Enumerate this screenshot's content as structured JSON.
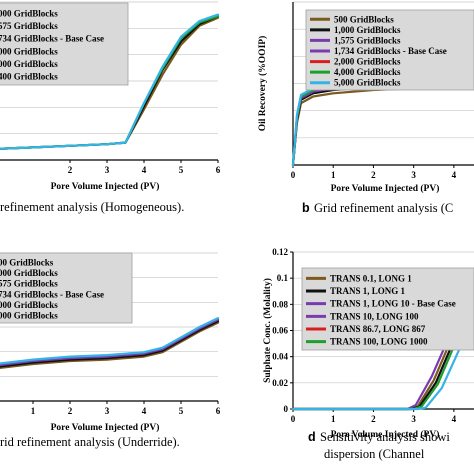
{
  "chart_data": [
    {
      "type": "line",
      "caption_label": "",
      "caption": "refinement analysis (Homogeneous).",
      "xlabel": "Pore Volume Injected (PV)",
      "ylabel": "",
      "xlim": [
        0,
        6
      ],
      "ylim": [
        0,
        1
      ],
      "xticks": [
        "2",
        "3",
        "4",
        "5",
        "6"
      ],
      "yticks": [],
      "legend": [
        "000 GridBlocks",
        "575 GridBlocks",
        "734 GridBlocks - Base Case",
        "000 GridBlocks",
        "000 GridBlocks",
        "400 GridBlocks"
      ],
      "series": [
        {
          "color": "#7a5a1e",
          "x": [
            0,
            1,
            2,
            3,
            3.5,
            4,
            4.5,
            5,
            5.5,
            6
          ],
          "y": [
            0.07,
            0.08,
            0.09,
            0.1,
            0.11,
            0.32,
            0.54,
            0.73,
            0.85,
            0.9
          ]
        },
        {
          "color": "#111111",
          "x": [
            0,
            1,
            2,
            3,
            3.5,
            4,
            4.5,
            5,
            5.5,
            6
          ],
          "y": [
            0.07,
            0.08,
            0.09,
            0.1,
            0.11,
            0.34,
            0.57,
            0.75,
            0.86,
            0.91
          ]
        },
        {
          "color": "#1c9f2c",
          "x": [
            0,
            1,
            2,
            3,
            3.5,
            4,
            4.5,
            5,
            5.5,
            6
          ],
          "y": [
            0.07,
            0.08,
            0.09,
            0.1,
            0.11,
            0.36,
            0.58,
            0.77,
            0.87,
            0.91
          ]
        },
        {
          "color": "#34b4e6",
          "x": [
            0,
            1,
            2,
            3,
            3.5,
            4,
            4.5,
            5,
            5.5,
            6
          ],
          "y": [
            0.07,
            0.08,
            0.09,
            0.1,
            0.11,
            0.36,
            0.59,
            0.78,
            0.88,
            0.92
          ]
        }
      ]
    },
    {
      "type": "line",
      "caption_label": "b",
      "caption": "Grid refinement analysis (C",
      "xlabel": "Pore Volume Injected (PV)",
      "ylabel": "Oil Recovery (%OOIP)",
      "xlim": [
        0,
        4.6
      ],
      "ylim": [
        0,
        1
      ],
      "xticks": [
        "0",
        "1",
        "2",
        "3",
        "4"
      ],
      "yticks": [],
      "legend": [
        "500 GridBlocks",
        "1,000 GridBlocks",
        "1,575 GridBlocks",
        "1,734 GridBlocks - Base Case",
        "2,000 GridBlocks",
        "4,000 GridBlocks",
        "5,000 GridBlocks"
      ],
      "series": [
        {
          "color": "#7a5a1e",
          "x": [
            0,
            0.1,
            0.2,
            0.5,
            1,
            2,
            3,
            3.5,
            4,
            4.6
          ],
          "y": [
            0.0,
            0.26,
            0.38,
            0.42,
            0.44,
            0.46,
            0.47,
            0.48,
            0.53,
            0.62
          ]
        },
        {
          "color": "#111111",
          "x": [
            0,
            0.1,
            0.2,
            0.5,
            1,
            2,
            3,
            3.5,
            4,
            4.6
          ],
          "y": [
            0.0,
            0.28,
            0.4,
            0.44,
            0.46,
            0.48,
            0.49,
            0.5,
            0.55,
            0.64
          ]
        },
        {
          "color": "#7b3bb0",
          "x": [
            0,
            0.1,
            0.2,
            0.5,
            1,
            2,
            3,
            3.5,
            4,
            4.6
          ],
          "y": [
            0.0,
            0.29,
            0.41,
            0.45,
            0.47,
            0.49,
            0.5,
            0.51,
            0.56,
            0.65
          ]
        },
        {
          "color": "#1c9f2c",
          "x": [
            0,
            0.1,
            0.2,
            0.5,
            1,
            2,
            3,
            3.5,
            4,
            4.6
          ],
          "y": [
            0.0,
            0.3,
            0.42,
            0.46,
            0.48,
            0.5,
            0.51,
            0.52,
            0.57,
            0.66
          ]
        },
        {
          "color": "#34b4e6",
          "x": [
            0,
            0.1,
            0.2,
            0.5,
            1,
            2,
            3,
            3.5,
            4,
            4.6
          ],
          "y": [
            0.0,
            0.31,
            0.43,
            0.47,
            0.49,
            0.51,
            0.52,
            0.53,
            0.58,
            0.67
          ]
        }
      ]
    },
    {
      "type": "line",
      "caption_label": "",
      "caption": "rid refinement analysis (Underride).",
      "xlabel": "Pore Volume Injected (PV)",
      "ylabel": "",
      "xlim": [
        0,
        6
      ],
      "ylim": [
        0,
        1
      ],
      "xticks": [
        "1",
        "2",
        "3",
        "4",
        "5",
        "6"
      ],
      "yticks": [],
      "legend": [
        "00 GridBlocks",
        "000 GridBlocks",
        "575 GridBlocks",
        "734 GridBlocks - Base Case",
        "000 GridBlocks",
        "000 GridBlocks"
      ],
      "series": [
        {
          "color": "#7a5a1e",
          "x": [
            0,
            1,
            2,
            3,
            4,
            4.5,
            5,
            5.5,
            6
          ],
          "y": [
            0.22,
            0.25,
            0.27,
            0.28,
            0.3,
            0.33,
            0.4,
            0.47,
            0.53
          ]
        },
        {
          "color": "#111111",
          "x": [
            0,
            1,
            2,
            3,
            4,
            4.5,
            5,
            5.5,
            6
          ],
          "y": [
            0.23,
            0.26,
            0.28,
            0.29,
            0.31,
            0.34,
            0.41,
            0.48,
            0.54
          ]
        },
        {
          "color": "#7b3bb0",
          "x": [
            0,
            1,
            2,
            3,
            4,
            4.5,
            5,
            5.5,
            6
          ],
          "y": [
            0.24,
            0.27,
            0.29,
            0.3,
            0.32,
            0.35,
            0.42,
            0.49,
            0.55
          ]
        },
        {
          "color": "#34b4e6",
          "x": [
            0,
            1,
            2,
            3,
            4,
            4.5,
            5,
            5.5,
            6
          ],
          "y": [
            0.25,
            0.28,
            0.3,
            0.31,
            0.33,
            0.36,
            0.43,
            0.5,
            0.56
          ]
        }
      ]
    },
    {
      "type": "line",
      "caption_label": "d",
      "caption": "Sensitivity analysis showi",
      "caption2": "dispersion (Channel",
      "xlabel": "Pore Volume Injected (PV)",
      "ylabel": "Sulphate Conc. (Molality)",
      "xlim": [
        0,
        4.6
      ],
      "ylim": [
        0,
        0.12
      ],
      "xticks": [
        "0",
        "1",
        "2",
        "3",
        "4"
      ],
      "yticks": [
        "0",
        "0.02",
        "0.04",
        "0.06",
        "0.08",
        "0.1",
        "0.12"
      ],
      "legend": [
        "TRANS 0.1, LONG 1",
        "TRANS 1, LONG 1",
        "TRANS 1, LONG 10 - Base Case",
        "TRANS 10, LONG 100",
        "TRANS 86.7, LONG 867",
        "TRANS 100, LONG 1000"
      ],
      "series": [
        {
          "color": "#7a5a1e",
          "x": [
            0,
            2.9,
            3.1,
            3.5,
            4,
            4.6
          ],
          "y": [
            0,
            0,
            0.002,
            0.022,
            0.058,
            0.074
          ]
        },
        {
          "color": "#7b3bb0",
          "x": [
            0,
            2.85,
            3.05,
            3.45,
            3.95,
            4.6
          ],
          "y": [
            0,
            0,
            0.003,
            0.025,
            0.06,
            0.075
          ]
        },
        {
          "color": "#111111",
          "x": [
            0,
            2.95,
            3.15,
            3.55,
            4.05,
            4.6
          ],
          "y": [
            0,
            0,
            0.002,
            0.02,
            0.056,
            0.072
          ]
        },
        {
          "color": "#1c9f2c",
          "x": [
            0,
            3.0,
            3.2,
            3.6,
            4.1,
            4.6
          ],
          "y": [
            0,
            0,
            0.002,
            0.019,
            0.055,
            0.071
          ]
        },
        {
          "color": "#34b4e6",
          "x": [
            0,
            3.1,
            3.3,
            3.7,
            4.2,
            4.6
          ],
          "y": [
            0,
            0,
            0.001,
            0.016,
            0.05,
            0.068
          ]
        }
      ]
    }
  ]
}
